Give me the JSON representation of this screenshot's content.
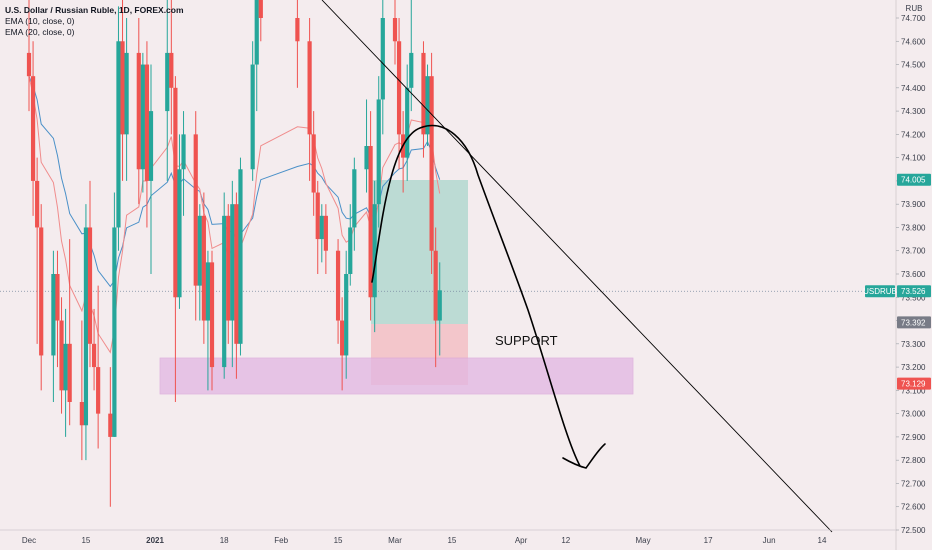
{
  "legend": {
    "title": "U.S. Dollar / Russian Ruble, 1D, FOREX.com",
    "ema1": "EMA (10, close, 0)",
    "ema2": "EMA (20, close, 0)"
  },
  "currency_label": "RUB",
  "symbol": "USDRUB",
  "annotations": {
    "support_label": "SUPPORT"
  },
  "colors": {
    "background": "#f4ecee",
    "up": "#26a69a",
    "down": "#ef5350",
    "ema10": "#f08c8c",
    "ema20": "#4a90c8",
    "target_zone": "#b2d8cf",
    "stop_zone": "#f3c2c7",
    "support_zone": "#e2b6e2",
    "drawing": "#000000",
    "tag_last": "#26a69a",
    "tag_current": "#26a69a",
    "tag_entry": "#787b86",
    "tag_stop": "#ef5350"
  },
  "chart_data": {
    "type": "candlestick",
    "title": "U.S. Dollar / Russian Ruble, 1D, FOREX.com",
    "y_axis": {
      "ylim": [
        72.5,
        74.82
      ],
      "ticks": [
        "74.700",
        "74.600",
        "74.500",
        "74.400",
        "74.300",
        "74.200",
        "74.100",
        "74.000",
        "73.900",
        "73.800",
        "73.700",
        "73.600",
        "73.500",
        "73.400",
        "73.300",
        "73.200",
        "73.100",
        "73.000",
        "72.900",
        "72.800",
        "72.700",
        "72.600",
        "72.500"
      ]
    },
    "x_axis": {
      "labels": [
        {
          "text": "Dec",
          "date": "2020-12-01"
        },
        {
          "text": "15",
          "date": "2020-12-15"
        },
        {
          "text": "2021",
          "date": "2021-01-01"
        },
        {
          "text": "18",
          "date": "2021-01-18"
        },
        {
          "text": "Feb",
          "date": "2021-02-01"
        },
        {
          "text": "15",
          "date": "2021-02-15"
        },
        {
          "text": "Mar",
          "date": "2021-03-01"
        },
        {
          "text": "15",
          "date": "2021-03-15"
        },
        {
          "text": "Apr",
          "date": "2021-04-01"
        },
        {
          "text": "12",
          "date": "2021-04-12"
        },
        {
          "text": "May",
          "date": "2021-05-01"
        },
        {
          "text": "17",
          "date": "2021-05-17"
        },
        {
          "text": "Jun",
          "date": "2021-06-01"
        },
        {
          "text": "14",
          "date": "2021-06-14"
        }
      ]
    },
    "price_tags": [
      {
        "value": "74.005",
        "kind": "last"
      },
      {
        "symbol": "USDRUB",
        "value": "73.526",
        "kind": "current"
      },
      {
        "value": "73.392",
        "kind": "entry"
      },
      {
        "value": "73.129",
        "kind": "stop"
      }
    ],
    "candles": [
      {
        "d": "2020-12-01",
        "o": 74.55,
        "h": 74.95,
        "l": 74.3,
        "c": 74.45
      },
      {
        "d": "2020-12-02",
        "o": 74.45,
        "h": 74.6,
        "l": 73.85,
        "c": 74.0
      },
      {
        "d": "2020-12-03",
        "o": 74.0,
        "h": 74.1,
        "l": 73.3,
        "c": 73.8
      },
      {
        "d": "2020-12-04",
        "o": 73.8,
        "h": 73.9,
        "l": 73.1,
        "c": 73.25
      },
      {
        "d": "2020-12-07",
        "o": 73.25,
        "h": 73.7,
        "l": 73.05,
        "c": 73.6
      },
      {
        "d": "2020-12-08",
        "o": 73.6,
        "h": 73.7,
        "l": 73.2,
        "c": 73.4
      },
      {
        "d": "2020-12-09",
        "o": 73.4,
        "h": 73.5,
        "l": 73.0,
        "c": 73.1
      },
      {
        "d": "2020-12-10",
        "o": 73.1,
        "h": 73.45,
        "l": 72.9,
        "c": 73.3
      },
      {
        "d": "2020-12-11",
        "o": 73.3,
        "h": 73.75,
        "l": 72.95,
        "c": 73.05
      },
      {
        "d": "2020-12-14",
        "o": 73.05,
        "h": 73.4,
        "l": 72.8,
        "c": 72.95
      },
      {
        "d": "2020-12-15",
        "o": 72.95,
        "h": 73.9,
        "l": 72.8,
        "c": 73.8
      },
      {
        "d": "2020-12-16",
        "o": 73.8,
        "h": 74.0,
        "l": 73.2,
        "c": 73.3
      },
      {
        "d": "2020-12-17",
        "o": 73.3,
        "h": 73.45,
        "l": 73.1,
        "c": 73.2
      },
      {
        "d": "2020-12-18",
        "o": 73.2,
        "h": 73.55,
        "l": 72.85,
        "c": 73.0
      },
      {
        "d": "2020-12-21",
        "o": 73.0,
        "h": 73.2,
        "l": 72.6,
        "c": 72.9
      },
      {
        "d": "2020-12-22",
        "o": 72.9,
        "h": 73.95,
        "l": 72.9,
        "c": 73.8
      },
      {
        "d": "2020-12-23",
        "o": 73.8,
        "h": 74.75,
        "l": 73.7,
        "c": 74.6
      },
      {
        "d": "2020-12-24",
        "o": 74.6,
        "h": 74.9,
        "l": 74.0,
        "c": 74.2
      },
      {
        "d": "2020-12-25",
        "o": 74.2,
        "h": 74.7,
        "l": 74.0,
        "c": 74.55
      },
      {
        "d": "2020-12-28",
        "o": 74.55,
        "h": 74.7,
        "l": 73.9,
        "c": 74.05
      },
      {
        "d": "2020-12-29",
        "o": 74.05,
        "h": 74.55,
        "l": 73.95,
        "c": 74.5
      },
      {
        "d": "2020-12-30",
        "o": 74.5,
        "h": 74.6,
        "l": 73.8,
        "c": 74.0
      },
      {
        "d": "2020-12-31",
        "o": 74.0,
        "h": 74.5,
        "l": 73.6,
        "c": 74.3
      },
      {
        "d": "2021-01-04",
        "o": 74.3,
        "h": 74.9,
        "l": 74.0,
        "c": 74.55
      },
      {
        "d": "2021-01-05",
        "o": 74.55,
        "h": 74.8,
        "l": 74.2,
        "c": 74.4
      },
      {
        "d": "2021-01-06",
        "o": 74.4,
        "h": 74.45,
        "l": 73.05,
        "c": 73.5
      },
      {
        "d": "2021-01-07",
        "o": 73.5,
        "h": 74.2,
        "l": 73.45,
        "c": 74.05
      },
      {
        "d": "2021-01-08",
        "o": 74.05,
        "h": 74.3,
        "l": 73.85,
        "c": 74.2
      },
      {
        "d": "2021-01-11",
        "o": 74.2,
        "h": 74.3,
        "l": 73.4,
        "c": 73.55
      },
      {
        "d": "2021-01-12",
        "o": 73.55,
        "h": 73.9,
        "l": 73.4,
        "c": 73.85
      },
      {
        "d": "2021-01-13",
        "o": 73.85,
        "h": 73.95,
        "l": 73.3,
        "c": 73.4
      },
      {
        "d": "2021-01-14",
        "o": 73.4,
        "h": 73.7,
        "l": 73.1,
        "c": 73.65
      },
      {
        "d": "2021-01-15",
        "o": 73.65,
        "h": 73.7,
        "l": 73.1,
        "c": 73.2
      },
      {
        "d": "2021-01-18",
        "o": 73.2,
        "h": 73.95,
        "l": 73.15,
        "c": 73.85
      },
      {
        "d": "2021-01-19",
        "o": 73.85,
        "h": 73.9,
        "l": 73.3,
        "c": 73.4
      },
      {
        "d": "2021-01-20",
        "o": 73.4,
        "h": 74.0,
        "l": 73.2,
        "c": 73.9
      },
      {
        "d": "2021-01-21",
        "o": 73.9,
        "h": 73.95,
        "l": 73.15,
        "c": 73.3
      },
      {
        "d": "2021-01-22",
        "o": 73.3,
        "h": 74.1,
        "l": 73.25,
        "c": 74.05
      },
      {
        "d": "2021-01-25",
        "o": 74.05,
        "h": 74.6,
        "l": 74.0,
        "c": 74.5
      },
      {
        "d": "2021-01-26",
        "o": 74.5,
        "h": 74.95,
        "l": 74.3,
        "c": 74.8
      },
      {
        "d": "2021-01-27",
        "o": 74.8,
        "h": 74.95,
        "l": 74.6,
        "c": 74.7
      },
      {
        "d": "2021-02-05",
        "o": 74.7,
        "h": 74.95,
        "l": 74.4,
        "c": 74.6
      },
      {
        "d": "2021-02-08",
        "o": 74.6,
        "h": 74.7,
        "l": 74.0,
        "c": 74.2
      },
      {
        "d": "2021-02-09",
        "o": 74.2,
        "h": 74.3,
        "l": 73.85,
        "c": 73.95
      },
      {
        "d": "2021-02-10",
        "o": 73.95,
        "h": 74.0,
        "l": 73.6,
        "c": 73.75
      },
      {
        "d": "2021-02-11",
        "o": 73.75,
        "h": 73.9,
        "l": 73.65,
        "c": 73.85
      },
      {
        "d": "2021-02-12",
        "o": 73.85,
        "h": 73.9,
        "l": 73.6,
        "c": 73.7
      },
      {
        "d": "2021-02-15",
        "o": 73.7,
        "h": 73.75,
        "l": 73.3,
        "c": 73.4
      },
      {
        "d": "2021-02-16",
        "o": 73.4,
        "h": 73.5,
        "l": 73.1,
        "c": 73.25
      },
      {
        "d": "2021-02-17",
        "o": 73.25,
        "h": 73.7,
        "l": 73.15,
        "c": 73.6
      },
      {
        "d": "2021-02-18",
        "o": 73.6,
        "h": 73.9,
        "l": 73.55,
        "c": 73.8
      },
      {
        "d": "2021-02-19",
        "o": 73.8,
        "h": 74.1,
        "l": 73.7,
        "c": 74.05
      },
      {
        "d": "2021-02-22",
        "o": 74.05,
        "h": 74.35,
        "l": 73.95,
        "c": 74.15
      },
      {
        "d": "2021-02-23",
        "o": 74.15,
        "h": 74.3,
        "l": 73.4,
        "c": 73.5
      },
      {
        "d": "2021-02-24",
        "o": 73.5,
        "h": 74.0,
        "l": 73.35,
        "c": 73.9
      },
      {
        "d": "2021-02-25",
        "o": 73.9,
        "h": 74.45,
        "l": 73.8,
        "c": 74.35
      },
      {
        "d": "2021-02-26",
        "o": 74.35,
        "h": 74.95,
        "l": 74.2,
        "c": 74.7
      },
      {
        "d": "2021-03-01",
        "o": 74.7,
        "h": 74.95,
        "l": 74.5,
        "c": 74.6
      },
      {
        "d": "2021-03-02",
        "o": 74.6,
        "h": 74.7,
        "l": 74.05,
        "c": 74.2
      },
      {
        "d": "2021-03-03",
        "o": 74.2,
        "h": 74.3,
        "l": 73.95,
        "c": 74.1
      },
      {
        "d": "2021-03-04",
        "o": 74.1,
        "h": 74.5,
        "l": 74.0,
        "c": 74.4
      },
      {
        "d": "2021-03-05",
        "o": 74.4,
        "h": 74.85,
        "l": 74.3,
        "c": 74.55
      },
      {
        "d": "2021-03-08",
        "o": 74.55,
        "h": 74.6,
        "l": 74.1,
        "c": 74.2
      },
      {
        "d": "2021-03-09",
        "o": 74.2,
        "h": 74.5,
        "l": 74.15,
        "c": 74.45
      },
      {
        "d": "2021-03-10",
        "o": 74.45,
        "h": 74.55,
        "l": 73.6,
        "c": 73.7
      },
      {
        "d": "2021-03-11",
        "o": 73.7,
        "h": 73.8,
        "l": 73.2,
        "c": 73.4
      },
      {
        "d": "2021-03-12",
        "o": 73.4,
        "h": 73.65,
        "l": 73.25,
        "c": 73.53
      }
    ]
  }
}
